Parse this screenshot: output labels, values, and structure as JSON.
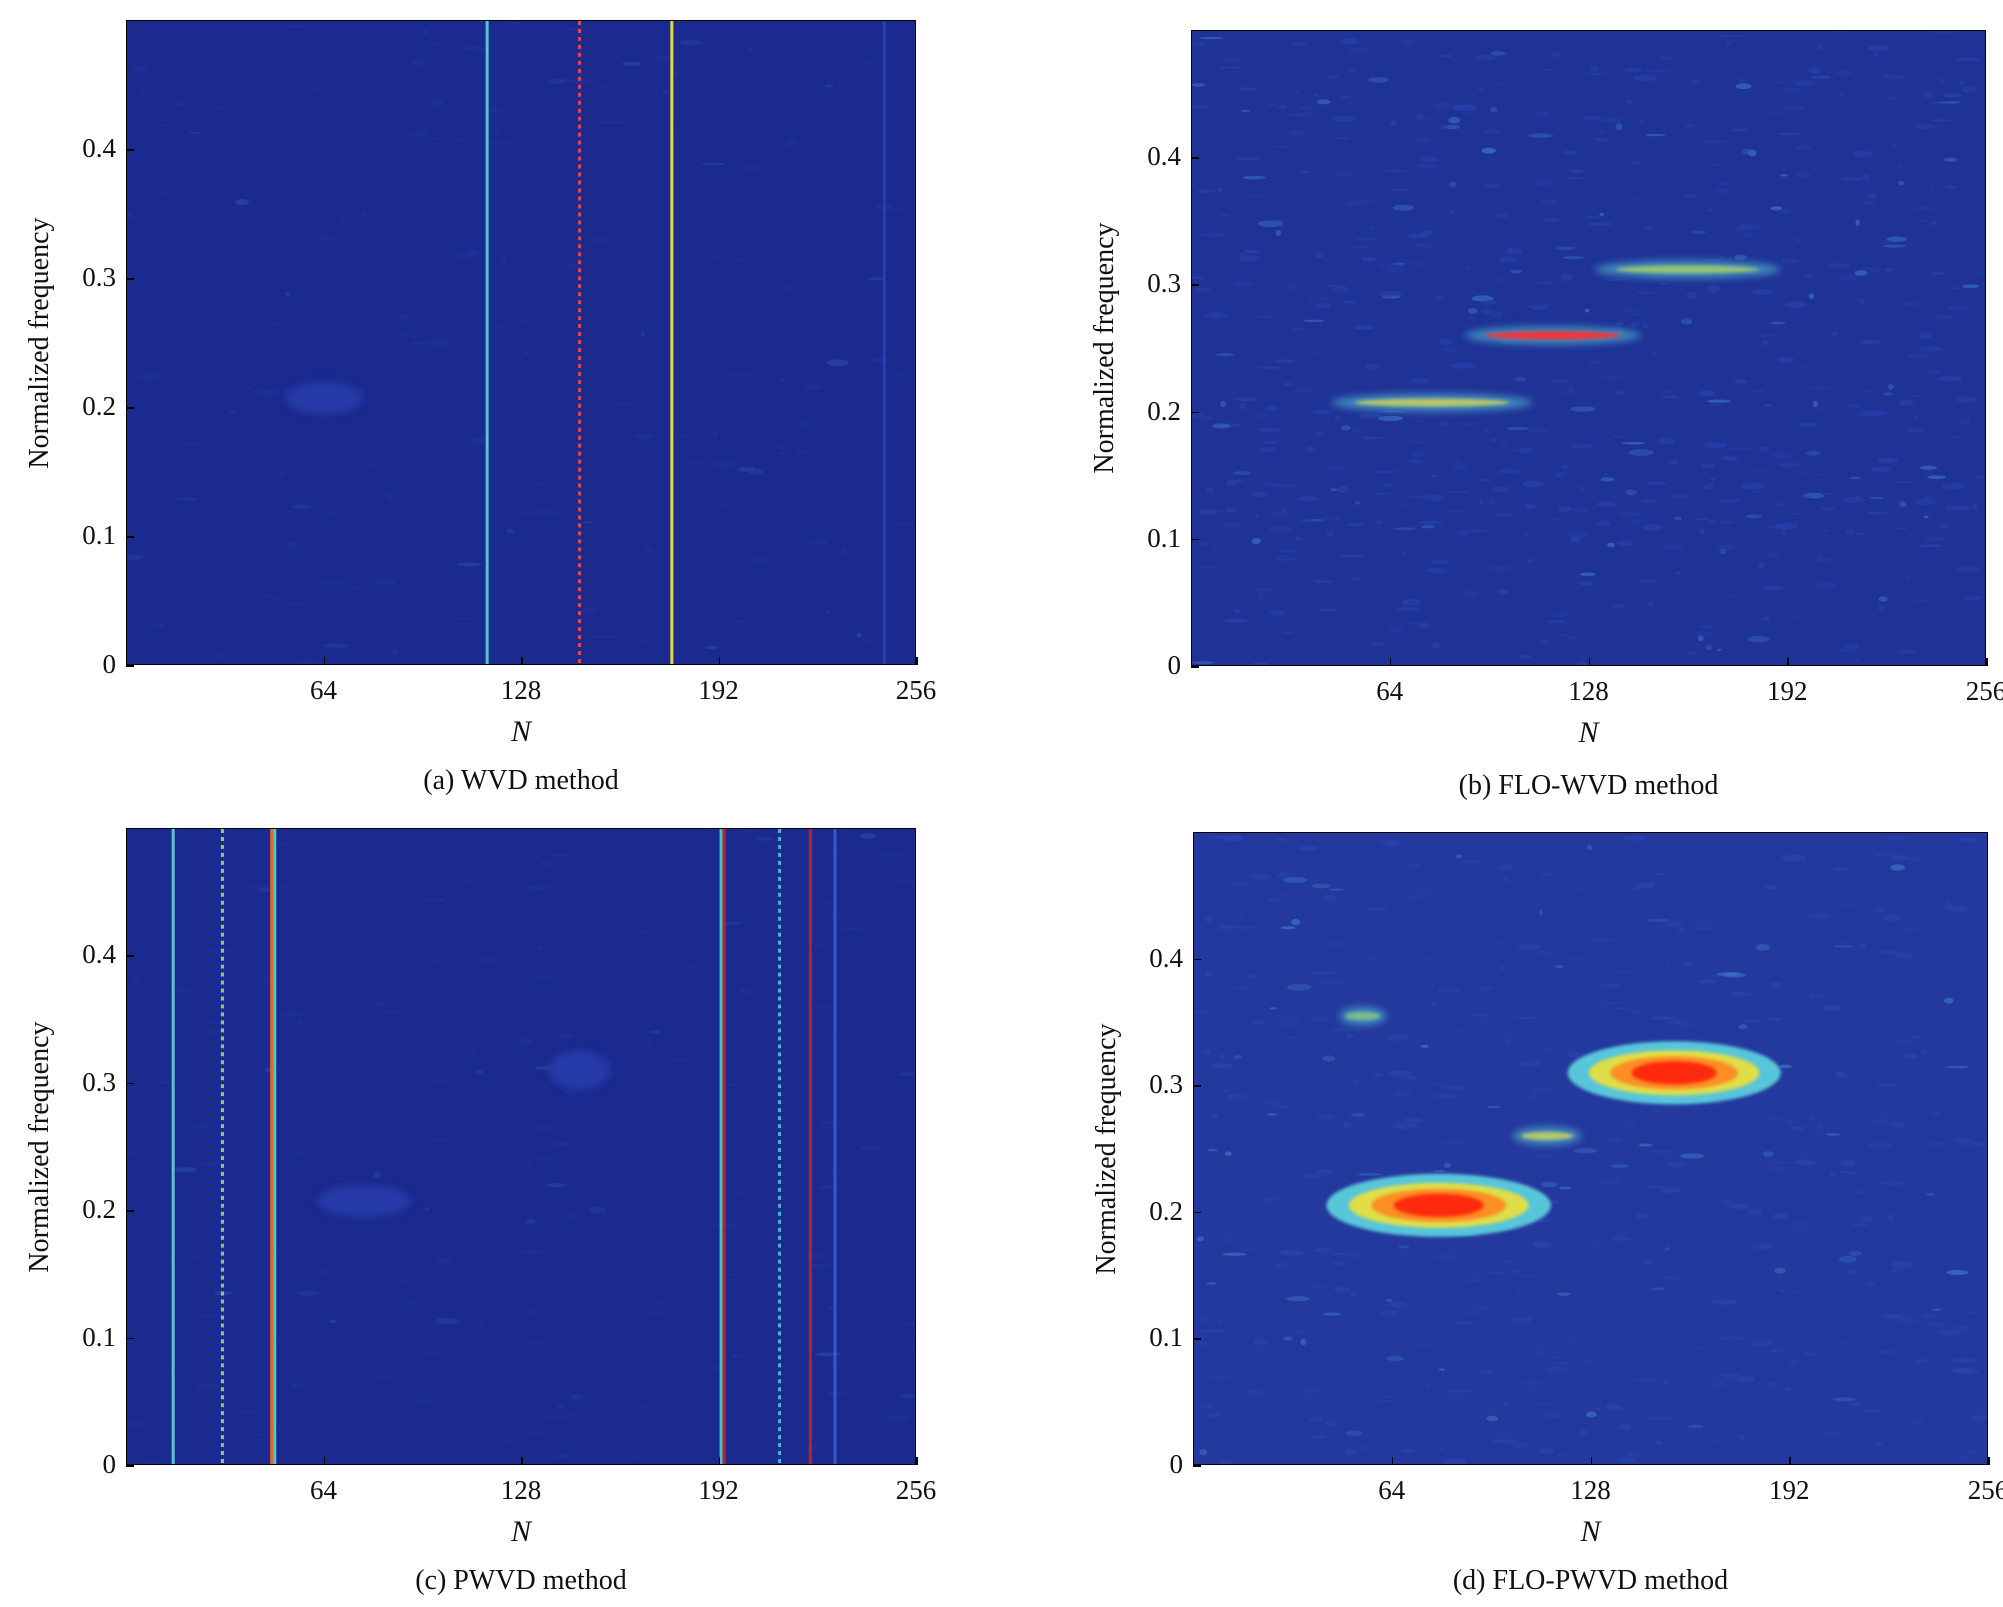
{
  "chart_data": [
    {
      "type": "heatmap",
      "panel_id": "a",
      "caption": "(a) WVD method",
      "xlabel": "N",
      "ylabel": "Normalized frequency",
      "xlim": [
        0,
        256
      ],
      "ylim": [
        0,
        0.5
      ],
      "xticks": [
        "64",
        "128",
        "192",
        "256"
      ],
      "yticks": [
        "0",
        "0.1",
        "0.2",
        "0.3",
        "0.4"
      ],
      "background_color": "#1b2a8f",
      "features": [
        {
          "kind": "vertical_line",
          "x": 117,
          "color": "#5fd6d0",
          "intensity": 0.55
        },
        {
          "kind": "vertical_line",
          "x": 147,
          "color": "#ff4040",
          "intensity": 0.9,
          "dashed": true
        },
        {
          "kind": "vertical_line",
          "x": 177,
          "color": "#e8d83a",
          "intensity": 0.75
        },
        {
          "kind": "faint_vertical_line",
          "x": 246,
          "color": "#3150c8",
          "intensity": 0.2
        },
        {
          "kind": "blob",
          "x_center": 64,
          "x_width": 25,
          "y_center": 0.207,
          "y_width": 0.012,
          "color": "#2a3fb0",
          "intensity": 0.15
        }
      ]
    },
    {
      "type": "heatmap",
      "panel_id": "b",
      "caption": "(b) FLO-WVD method",
      "xlabel": "N",
      "ylabel": "Normalized frequency",
      "xlim": [
        0,
        256
      ],
      "ylim": [
        0,
        0.5
      ],
      "xticks": [
        "64",
        "128",
        "192",
        "256"
      ],
      "yticks": [
        "0",
        "0.1",
        "0.2",
        "0.3",
        "0.4"
      ],
      "background_color": "#1f3296",
      "features": [
        {
          "kind": "streak",
          "x_start": 45,
          "x_end": 110,
          "y": 0.207,
          "color": "#e9e04a",
          "intensity": 0.7
        },
        {
          "kind": "streak",
          "x_start": 88,
          "x_end": 145,
          "y": 0.26,
          "color": "#ff3030",
          "intensity": 0.95
        },
        {
          "kind": "streak",
          "x_start": 130,
          "x_end": 190,
          "y": 0.312,
          "color": "#c8e050",
          "intensity": 0.65
        }
      ]
    },
    {
      "type": "heatmap",
      "panel_id": "c",
      "caption": "(c) PWVD method",
      "xlabel": "N",
      "ylabel": "Normalized frequency",
      "xlim": [
        0,
        256
      ],
      "ylim": [
        0,
        0.5
      ],
      "xticks": [
        "64",
        "128",
        "192",
        "256"
      ],
      "yticks": [
        "0",
        "0.1",
        "0.2",
        "0.3",
        "0.4"
      ],
      "background_color": "#1b2a8f",
      "features": [
        {
          "kind": "vertical_line",
          "x": 15,
          "color": "#5fd6d0",
          "intensity": 0.55
        },
        {
          "kind": "vertical_line",
          "x": 31,
          "color": "#9ee06a",
          "intensity": 0.55,
          "dashed": true
        },
        {
          "kind": "vertical_line",
          "x": 47,
          "color": "#e06a20",
          "intensity": 0.8
        },
        {
          "kind": "vertical_line",
          "x": 48,
          "color": "#5fd6d0",
          "intensity": 0.55
        },
        {
          "kind": "vertical_line",
          "x": 193,
          "color": "#5fd6d0",
          "intensity": 0.5
        },
        {
          "kind": "vertical_line",
          "x": 194,
          "color": "#c02020",
          "intensity": 0.85
        },
        {
          "kind": "vertical_line",
          "x": 212,
          "color": "#5fd6d0",
          "intensity": 0.45,
          "dashed": true
        },
        {
          "kind": "vertical_line",
          "x": 222,
          "color": "#c02020",
          "intensity": 0.75
        },
        {
          "kind": "vertical_line",
          "x": 230,
          "color": "#4070e0",
          "intensity": 0.35
        },
        {
          "kind": "blob",
          "x_center": 77,
          "x_width": 30,
          "y_center": 0.207,
          "y_width": 0.012,
          "color": "#2a3fb0",
          "intensity": 0.15
        },
        {
          "kind": "blob",
          "x_center": 147,
          "x_width": 20,
          "y_center": 0.31,
          "y_width": 0.015,
          "color": "#2a3fb0",
          "intensity": 0.15
        }
      ]
    },
    {
      "type": "heatmap",
      "panel_id": "d",
      "caption": "(d) FLO-PWVD method",
      "xlabel": "N",
      "ylabel": "Normalized frequency",
      "xlim": [
        0,
        256
      ],
      "ylim": [
        0,
        0.5
      ],
      "xticks": [
        "64",
        "128",
        "192",
        "256"
      ],
      "yticks": [
        "0",
        "0.1",
        "0.2",
        "0.3",
        "0.4"
      ],
      "background_color": "#24399e",
      "features": [
        {
          "kind": "ellipse",
          "x_center": 79,
          "x_width": 58,
          "y": 0.205,
          "y_height": 0.02,
          "color": "#ff2a10",
          "intensity": 1.0
        },
        {
          "kind": "ellipse",
          "x_center": 155,
          "x_width": 55,
          "y": 0.31,
          "y_height": 0.02,
          "color": "#ff2a10",
          "intensity": 1.0
        },
        {
          "kind": "streak",
          "x_start": 103,
          "x_end": 125,
          "y": 0.26,
          "color": "#e8e040",
          "intensity": 0.7
        },
        {
          "kind": "streak",
          "x_start": 47,
          "x_end": 62,
          "y": 0.355,
          "color": "#a8e060",
          "intensity": 0.55
        }
      ]
    }
  ]
}
